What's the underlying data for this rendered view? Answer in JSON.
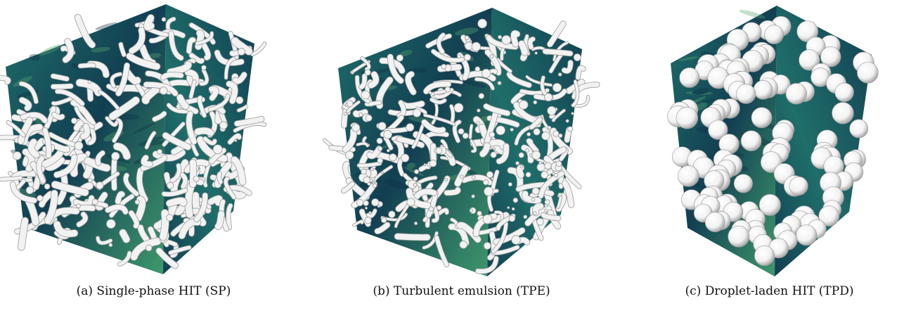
{
  "figure": {
    "panels": [
      {
        "id": "a",
        "caption": "(a) Single-phase HIT (SP)",
        "structures": "vortex-tubes"
      },
      {
        "id": "b",
        "caption": "(b) Turbulent emulsion (TPE)",
        "structures": "deformed-droplets"
      },
      {
        "id": "c",
        "caption": "(c) Droplet-laden HIT (TPD)",
        "structures": "spherical-droplets"
      }
    ],
    "colors": {
      "cube_face_dark": "#123f52",
      "cube_face_mid": "#1f6e6a",
      "cube_face_light": "#3f9a6d",
      "structure_light": "#f2f2f2",
      "structure_shade": "#9a9a9a"
    }
  }
}
